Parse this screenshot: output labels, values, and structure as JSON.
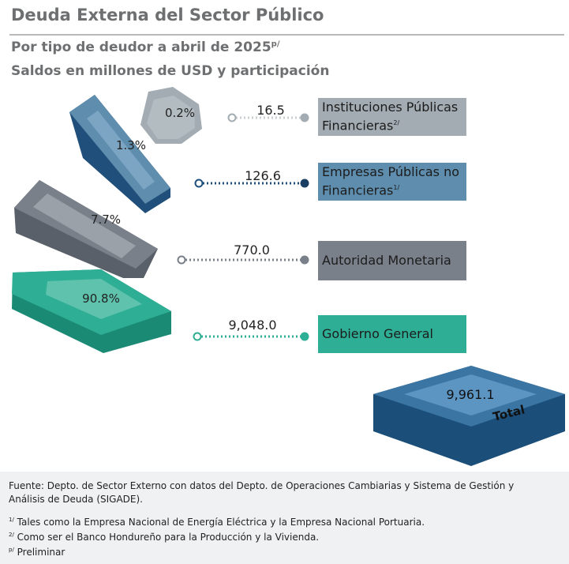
{
  "title": "Deuda Externa del Sector Público",
  "subtitle1": "Por tipo de deudor  a abril de 2025",
  "subtitle1_sup": "p/",
  "subtitle2": "Saldos en millones de USD y participación",
  "colors": {
    "instituciones": "#a2acb2",
    "empresas": "#5e8dad",
    "autoridad": "#7a808a",
    "gobierno": "#2eae94",
    "total": "#3a75a3"
  },
  "chart_data": {
    "type": "bar",
    "categories": [
      "Instituciones Públicas Financieras",
      "Empresas Públicas no Financieras",
      "Autoridad Monetaria",
      "Gobierno General"
    ],
    "values": [
      16.5,
      126.6,
      770.0,
      9048.0
    ],
    "value_labels": [
      "16.5",
      "126.6",
      "770.0",
      "9,048.0"
    ],
    "shares": [
      "0.2%",
      "1.3%",
      "7.7%",
      "90.8%"
    ],
    "label_sups": [
      "2/",
      "1/",
      "",
      ""
    ],
    "total": {
      "value": 9961.1,
      "label": "9,961.1",
      "caption": "Total"
    },
    "unit": "millones de USD"
  },
  "footer": {
    "source_line1": "Fuente: Depto. de Sector Externo con datos del Depto. de Operaciones Cambiarias y Sistema de Gestión y",
    "source_line2": "Análisis de Deuda (SIGADE).",
    "notes": [
      {
        "mark": "1/",
        "text": "Tales como la Empresa Nacional de Energía Eléctrica y la Empresa Nacional Portuaria."
      },
      {
        "mark": "2/",
        "text": "Como ser el Banco Hondureño para la Producción y la Vivienda."
      },
      {
        "mark": "p/",
        "text": "Preliminar"
      }
    ]
  }
}
